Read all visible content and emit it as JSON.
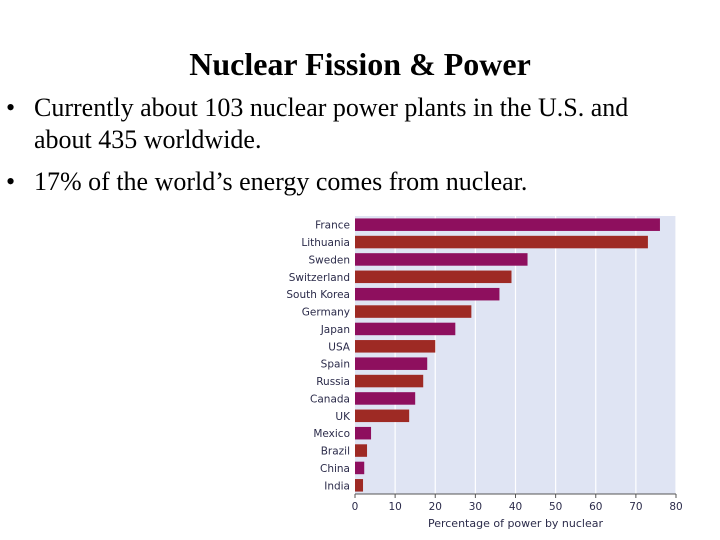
{
  "slide": {
    "title": "Nuclear Fission & Power",
    "bullets": [
      "Currently about 103 nuclear power plants in the U.S. and about 435 worldwide.",
      "17% of the world’s energy comes from nuclear."
    ],
    "bullet_symbol": "•"
  },
  "chart_data": {
    "type": "bar",
    "orientation": "horizontal",
    "categories": [
      "France",
      "Lithuania",
      "Sweden",
      "Switzerland",
      "South Korea",
      "Germany",
      "Japan",
      "USA",
      "Spain",
      "Russia",
      "Canada",
      "UK",
      "Mexico",
      "Brazil",
      "China",
      "India"
    ],
    "values": [
      76,
      73,
      43,
      39,
      36,
      29,
      25,
      20,
      18,
      17,
      15,
      13.5,
      4,
      3,
      2.3,
      2
    ],
    "bar_colors": [
      "#8e0f5e",
      "#9e2a24",
      "#8e0f5e",
      "#9e2a24",
      "#8e0f5e",
      "#9e2a24",
      "#8e0f5e",
      "#9e2a24",
      "#8e0f5e",
      "#9e2a24",
      "#8e0f5e",
      "#9e2a24",
      "#8e0f5e",
      "#9e2a24",
      "#8e0f5e",
      "#9e2a24"
    ],
    "xlim": [
      0,
      80
    ],
    "xticks": [
      0,
      10,
      20,
      30,
      40,
      50,
      60,
      70,
      80
    ],
    "xlabel": "Percentage of power by nuclear",
    "grid": true,
    "plot_background": "#dfe4f3",
    "grid_color": "#ffffff"
  }
}
